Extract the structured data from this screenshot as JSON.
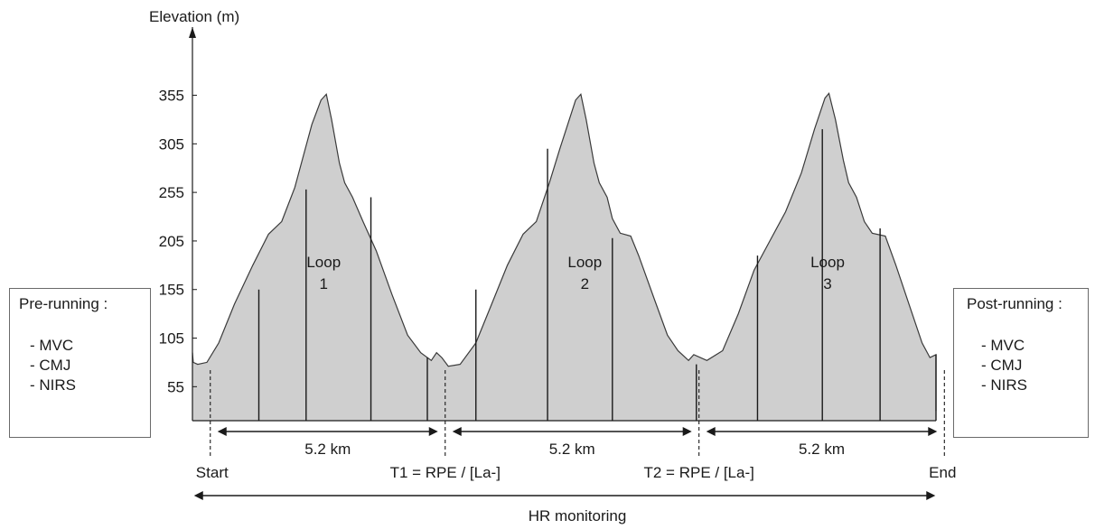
{
  "chart_data": {
    "type": "area",
    "ylabel": "Elevation (m)",
    "yticks": [
      55,
      105,
      155,
      205,
      255,
      305,
      355
    ],
    "ylim": [
      20,
      375
    ],
    "profile": [
      [
        0.0,
        90
      ],
      [
        0.03,
        80
      ],
      [
        0.2,
        78
      ],
      [
        0.55,
        80
      ],
      [
        1.0,
        100
      ],
      [
        1.6,
        140
      ],
      [
        2.3,
        180
      ],
      [
        2.9,
        212
      ],
      [
        3.4,
        225
      ],
      [
        3.9,
        260
      ],
      [
        4.2,
        290
      ],
      [
        4.55,
        325
      ],
      [
        4.9,
        350
      ],
      [
        5.1,
        356
      ],
      [
        5.3,
        330
      ],
      [
        5.6,
        285
      ],
      [
        5.8,
        265
      ],
      [
        6.1,
        250
      ],
      [
        6.5,
        225
      ],
      [
        7.0,
        195
      ],
      [
        7.6,
        150
      ],
      [
        8.2,
        108
      ],
      [
        8.7,
        90
      ],
      [
        9.1,
        82
      ],
      [
        9.3,
        90
      ],
      [
        9.5,
        85
      ],
      [
        9.75,
        76
      ],
      [
        10.2,
        78
      ],
      [
        10.8,
        100
      ],
      [
        11.4,
        140
      ],
      [
        12.0,
        180
      ],
      [
        12.6,
        212
      ],
      [
        13.1,
        225
      ],
      [
        13.6,
        265
      ],
      [
        14.0,
        300
      ],
      [
        14.3,
        325
      ],
      [
        14.6,
        350
      ],
      [
        14.8,
        356
      ],
      [
        15.0,
        330
      ],
      [
        15.3,
        285
      ],
      [
        15.5,
        265
      ],
      [
        15.8,
        250
      ],
      [
        16.0,
        228
      ],
      [
        16.3,
        213
      ],
      [
        16.7,
        210
      ],
      [
        17.0,
        190
      ],
      [
        17.6,
        145
      ],
      [
        18.1,
        108
      ],
      [
        18.5,
        92
      ],
      [
        18.9,
        82
      ],
      [
        19.1,
        88
      ],
      [
        19.6,
        82
      ],
      [
        20.2,
        92
      ],
      [
        20.8,
        130
      ],
      [
        21.4,
        175
      ],
      [
        22.0,
        205
      ],
      [
        22.6,
        235
      ],
      [
        23.2,
        275
      ],
      [
        23.7,
        320
      ],
      [
        24.1,
        352
      ],
      [
        24.25,
        357
      ],
      [
        24.5,
        330
      ],
      [
        24.8,
        288
      ],
      [
        25.0,
        265
      ],
      [
        25.3,
        250
      ],
      [
        25.6,
        225
      ],
      [
        25.9,
        213
      ],
      [
        26.4,
        210
      ],
      [
        26.8,
        180
      ],
      [
        27.3,
        140
      ],
      [
        27.8,
        100
      ],
      [
        28.1,
        85
      ],
      [
        28.33,
        88
      ],
      [
        28.33,
        30
      ]
    ],
    "splits": [
      [
        2.53,
        155
      ],
      [
        4.33,
        258
      ],
      [
        6.8,
        250
      ],
      [
        8.95,
        85
      ],
      [
        10.8,
        155
      ],
      [
        13.53,
        300
      ],
      [
        16.0,
        208
      ],
      [
        19.2,
        78
      ],
      [
        21.53,
        190
      ],
      [
        24.0,
        320
      ],
      [
        26.2,
        218
      ],
      [
        28.33,
        88
      ]
    ],
    "loops": [
      {
        "name": "Loop",
        "number": "1",
        "x": 5.0,
        "distance": "5.2 km"
      },
      {
        "name": "Loop",
        "number": "2",
        "x": 14.95,
        "distance": "5.2 km"
      },
      {
        "name": "Loop",
        "number": "3",
        "x": 24.2,
        "distance": "5.2 km"
      }
    ],
    "markers": [
      {
        "label": "Start",
        "x": 0.68
      },
      {
        "label": "T1 = RPE / [La-]",
        "x": 9.63
      },
      {
        "label": "T2 = RPE / [La-]",
        "x": 19.3
      },
      {
        "label": "End",
        "x": 28.65
      }
    ],
    "hr_label": "HR monitoring"
  },
  "pre_box": {
    "title": "Pre-running :",
    "items": [
      "- MVC",
      "- CMJ",
      "- NIRS"
    ]
  },
  "post_box": {
    "title": "Post-running :",
    "items": [
      "- MVC",
      "- CMJ",
      "- NIRS"
    ]
  },
  "colors": {
    "fill": "#cfcfcf",
    "line": "#1a1a1a"
  }
}
